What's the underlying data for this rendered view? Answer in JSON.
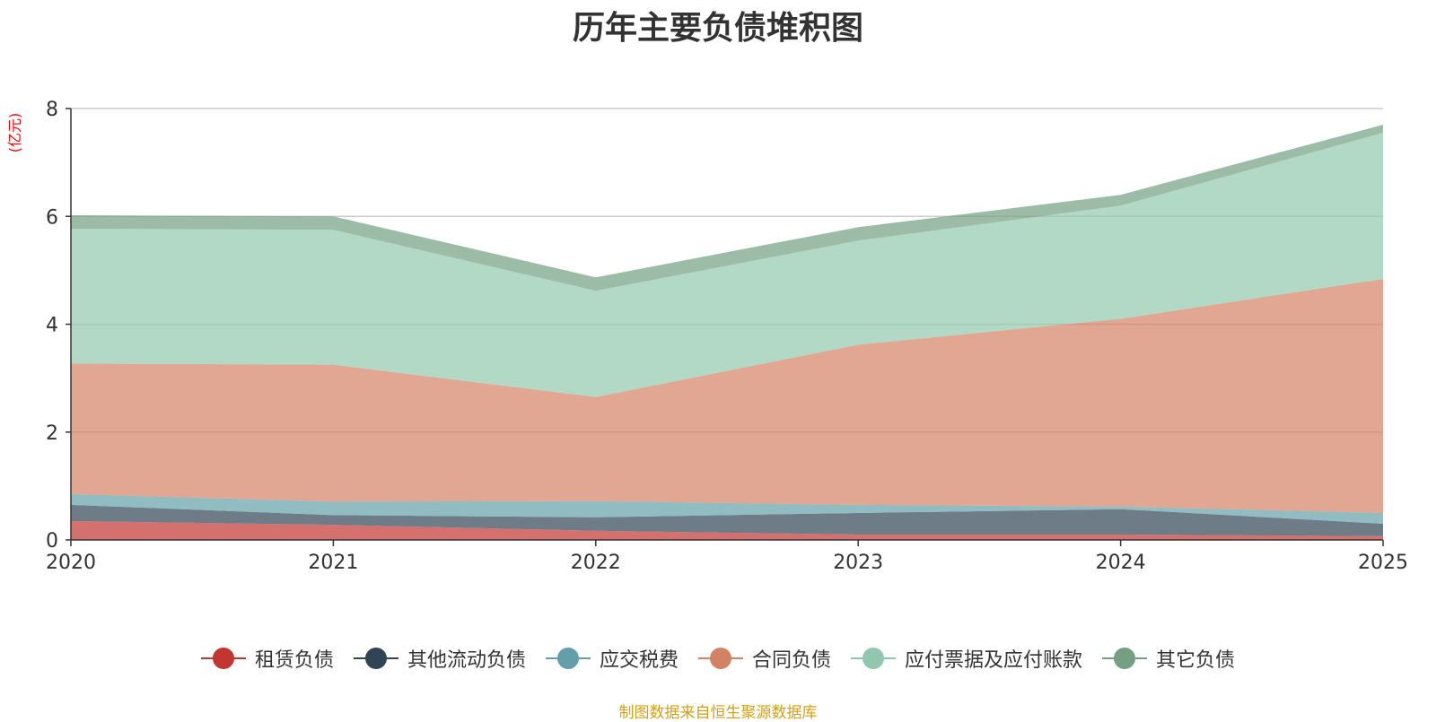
{
  "chart_data": {
    "type": "area",
    "stacked": true,
    "title": "历年主要负债堆积图",
    "ylabel": "(亿元)",
    "xlabel": "",
    "x": [
      "2020",
      "2021",
      "2022",
      "2023",
      "2024",
      "2025"
    ],
    "ylim": [
      0,
      8
    ],
    "yticks": [
      0,
      2,
      4,
      6,
      8
    ],
    "grid": true,
    "legend_position": "bottom",
    "series": [
      {
        "name": "租赁负债",
        "color": "#c23531",
        "values": [
          0.35,
          0.28,
          0.17,
          0.1,
          0.1,
          0.07
        ]
      },
      {
        "name": "其他流动负债",
        "color": "#2f4554",
        "values": [
          0.3,
          0.18,
          0.25,
          0.4,
          0.47,
          0.23
        ]
      },
      {
        "name": "应交税费",
        "color": "#61a0a8",
        "values": [
          0.2,
          0.25,
          0.3,
          0.15,
          0.05,
          0.2
        ]
      },
      {
        "name": "合同负债",
        "color": "#d48265",
        "values": [
          2.42,
          2.54,
          1.93,
          2.97,
          3.48,
          4.34
        ]
      },
      {
        "name": "应付票据及应付账款",
        "color": "#91c7ae",
        "values": [
          2.5,
          2.5,
          1.97,
          1.93,
          2.1,
          2.71
        ]
      },
      {
        "name": "其它负债",
        "color": "#749f83",
        "values": [
          0.25,
          0.25,
          0.25,
          0.25,
          0.2,
          0.15
        ]
      }
    ]
  },
  "source_note": "制图数据来自恒生聚源数据库"
}
